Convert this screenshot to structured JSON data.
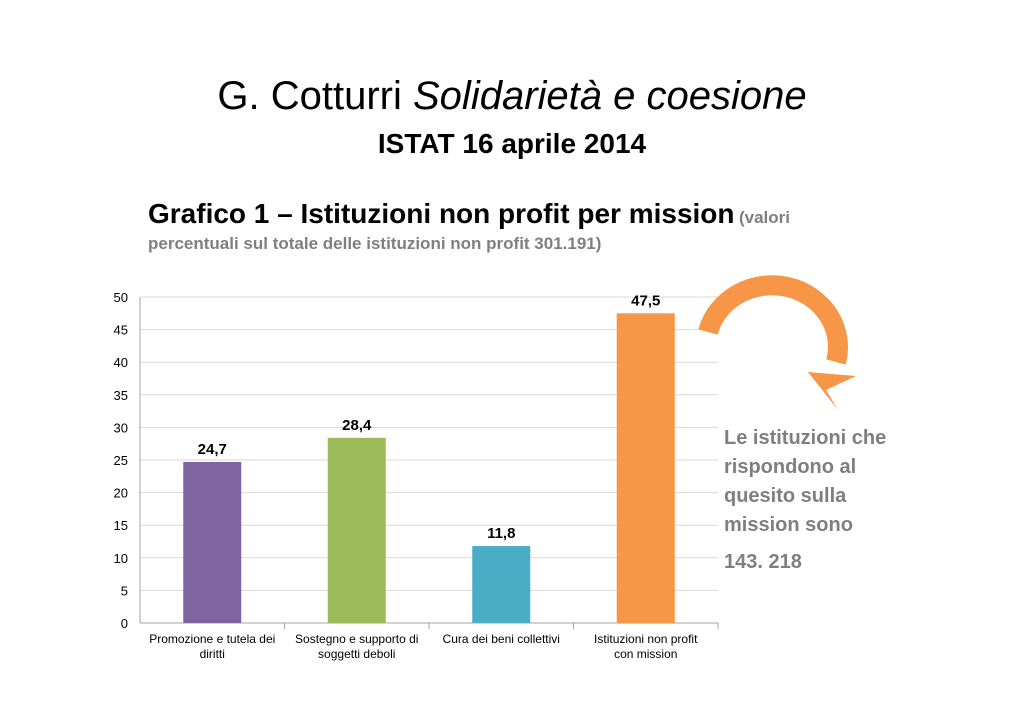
{
  "header": {
    "title_name": "G. Cotturri",
    "title_italic": "Solidarietà e coesione",
    "subtitle": "ISTAT 16 aprile 2014"
  },
  "chart_heading": {
    "main": "Grafico 1 – Istituzioni non profit per mission",
    "sub_a": "(valori",
    "sub_b": "percentuali sul totale delle istituzioni non profit 301.191)"
  },
  "side_note": {
    "text": "Le istituzioni che rispondono al quesito sulla mission sono",
    "number": "143. 218"
  },
  "colors": {
    "arrow": "#f79646",
    "grid": "#d9d9d9",
    "text_gray": "#7f7f7f"
  },
  "chart_data": {
    "type": "bar",
    "categories": [
      [
        "Promozione e tutela dei",
        "diritti"
      ],
      [
        "Sostegno e supporto di",
        "soggetti deboli"
      ],
      [
        "Cura dei beni collettivi"
      ],
      [
        "Istituzioni non profit",
        "con mission"
      ]
    ],
    "values": [
      24.7,
      28.4,
      11.8,
      47.5
    ],
    "data_labels": [
      "24,7",
      "28,4",
      "11,8",
      "47,5"
    ],
    "bar_colors": [
      "#8064a2",
      "#9bbb59",
      "#4bacc6",
      "#f79646"
    ],
    "ylim": [
      0,
      50
    ],
    "yticks": [
      0,
      5,
      10,
      15,
      20,
      25,
      30,
      35,
      40,
      45,
      50
    ],
    "grid": true,
    "legend": "none",
    "title": "",
    "xlabel": "",
    "ylabel": ""
  }
}
